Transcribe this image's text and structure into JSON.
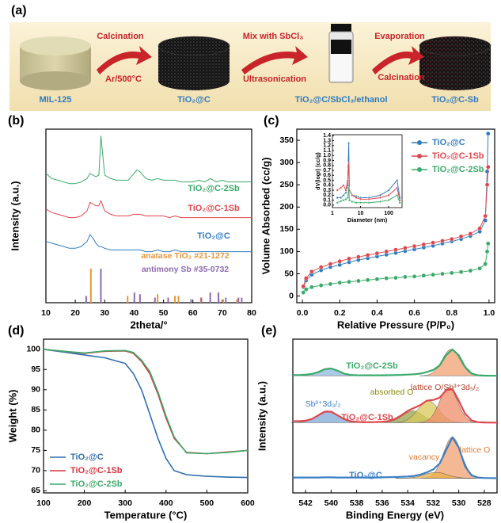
{
  "scheme": {
    "panel": "(a)",
    "steps": [
      {
        "label": "MIL-125"
      },
      {
        "label": "TiO₂@C"
      },
      {
        "label": "TiO₂@C/SbCl₃/ethanol"
      },
      {
        "label": "TiO₂@C-Sb"
      }
    ],
    "arrows": [
      {
        "top": "Calcination",
        "bottom": "Ar/500°C"
      },
      {
        "top": "Mix with SbCl₃",
        "bottom": "Ultrasonication"
      },
      {
        "top": "Evaporation",
        "bottom": "Calcination"
      }
    ]
  },
  "chart_data": [
    {
      "type": "line",
      "panel": "(b)",
      "x_label": "2theta/°",
      "y_label": "Intensity (a.u.)",
      "xlim": [
        10,
        80
      ],
      "xticks": [
        10,
        20,
        30,
        40,
        50,
        60,
        70,
        80
      ],
      "ylim": [
        0,
        102
      ],
      "x": [
        10,
        12,
        14,
        16,
        18,
        20,
        22,
        24,
        25,
        26,
        27,
        28,
        28.7,
        30,
        32,
        34,
        36,
        38,
        40,
        41,
        42,
        44,
        46,
        48,
        50,
        52,
        54,
        56,
        58,
        60,
        62,
        64,
        66,
        68,
        70,
        72,
        74,
        76,
        78,
        80
      ],
      "series": [
        {
          "name": "TiO₂@C",
          "color": "#2f7bbf",
          "values": [
            36,
            35,
            34,
            33,
            32,
            32,
            33,
            36,
            40,
            38,
            35,
            33,
            33,
            32,
            31,
            31,
            31,
            31,
            31,
            31,
            31,
            30,
            30,
            31,
            30,
            30,
            31,
            30,
            30,
            30,
            30,
            30,
            30,
            30,
            30,
            30,
            30,
            30,
            30,
            30
          ]
        },
        {
          "name": "TiO₂@C-1Sb",
          "color": "#e0474c",
          "values": [
            55,
            53,
            52,
            51,
            50,
            50,
            51,
            54,
            59,
            58,
            57,
            57,
            60,
            54,
            52,
            51,
            51,
            51,
            52,
            52,
            52,
            51,
            51,
            51,
            51,
            50,
            51,
            50,
            50,
            50,
            50,
            50,
            50,
            50,
            50,
            50,
            50,
            50,
            50,
            50
          ]
        },
        {
          "name": "TiO₂@C-2Sb",
          "color": "#3aaa6a",
          "values": [
            76,
            73,
            72,
            71,
            70,
            70,
            71,
            73,
            76,
            75,
            74,
            75,
            98,
            75,
            73,
            72,
            72,
            72,
            76,
            78,
            77,
            73,
            72,
            73,
            72,
            72,
            72,
            71,
            71,
            71,
            72,
            71,
            73,
            71,
            72,
            71,
            71,
            71,
            71,
            71
          ]
        }
      ],
      "references": [
        {
          "name": "anatase TiO₂ #21-1272",
          "color": "#e8963a",
          "x": [
            25.3,
            37.8,
            48.0,
            53.9,
            55.1,
            62.7,
            68.8,
            70.3,
            75.0
          ],
          "values": [
            20,
            4,
            5,
            4,
            4,
            3,
            2,
            2,
            2
          ]
        },
        {
          "name": "antimony Sb #35-0732",
          "color": "#8e6bb0",
          "x": [
            23.7,
            28.7,
            40.1,
            42.0,
            47.1,
            51.6,
            59.4,
            62.9,
            65.9,
            68.7,
            71.2,
            75.5,
            76.6
          ],
          "values": [
            4,
            20,
            6,
            5,
            3,
            3,
            2,
            3,
            6,
            6,
            3,
            3,
            3
          ]
        }
      ]
    },
    {
      "type": "line",
      "panel": "(c)",
      "markers": true,
      "legend": "upper right",
      "x_label": "Relative Pressure (P/P₀)",
      "y_label": "Volume Absorbed (cc/g)",
      "xlim": [
        -0.03,
        1.03
      ],
      "xticks": [
        {
          "value": 0,
          "label": "0.0"
        },
        {
          "value": 0.2,
          "label": "0.2"
        },
        {
          "value": 0.4,
          "label": "0.4"
        },
        {
          "value": 0.6,
          "label": "0.6"
        },
        {
          "value": 0.8,
          "label": "0.8"
        },
        {
          "value": 1,
          "label": "1.0"
        }
      ],
      "ylim": [
        -15,
        375
      ],
      "yticks": [
        0,
        50,
        100,
        150,
        200,
        250,
        300,
        350
      ],
      "x": [
        0.005,
        0.02,
        0.05,
        0.1,
        0.15,
        0.2,
        0.25,
        0.3,
        0.35,
        0.4,
        0.45,
        0.5,
        0.55,
        0.6,
        0.65,
        0.7,
        0.75,
        0.8,
        0.85,
        0.9,
        0.95,
        0.98,
        0.99,
        0.995
      ],
      "series": [
        {
          "name": "TiO₂@C",
          "color": "#2f7bbf",
          "values": [
            20,
            35,
            48,
            58,
            65,
            70,
            76,
            81,
            85,
            89,
            93,
            97,
            101,
            105,
            109,
            113,
            118,
            123,
            128,
            135,
            145,
            170,
            280,
            365
          ]
        },
        {
          "name": "TiO₂@C-1Sb",
          "color": "#e0474c",
          "values": [
            22,
            40,
            55,
            65,
            72,
            78,
            84,
            88,
            92,
            96,
            100,
            104,
            108,
            112,
            116,
            120,
            124,
            128,
            134,
            140,
            152,
            180,
            250,
            290
          ]
        },
        {
          "name": "TiO₂@C-2Sb",
          "color": "#3aaa6a",
          "values": [
            8,
            15,
            20,
            24,
            27,
            30,
            32,
            34,
            36,
            38,
            40,
            41,
            43,
            44,
            46,
            48,
            50,
            52,
            54,
            57,
            62,
            72,
            100,
            118
          ]
        }
      ]
    },
    {
      "type": "line",
      "inset": true,
      "markers": true,
      "log_x": true,
      "x_label": "Diameter (nm)",
      "y_label": "dV(logr) (cc/g)",
      "xlim": [
        1,
        300
      ],
      "xticks": [
        1,
        10,
        100
      ],
      "ylim": [
        -0.05,
        1.42
      ],
      "yticks": [
        {
          "value": 0,
          "label": "0.0"
        },
        {
          "value": 0.1,
          "label": "0.1"
        },
        {
          "value": 0.2,
          "label": "0.2"
        },
        {
          "value": 0.3,
          "label": "0.3"
        },
        {
          "value": 0.4,
          "label": "0.4"
        },
        {
          "value": 0.5,
          "label": "0.5"
        },
        {
          "value": 0.6,
          "label": "0.6"
        },
        {
          "value": 0.7,
          "label": "0.7"
        },
        {
          "value": 0.8,
          "label": "0.8"
        },
        {
          "value": 0.9,
          "label": "0.9"
        },
        {
          "value": 1,
          "label": "1.0"
        },
        {
          "value": 1.1,
          "label": "1.1"
        },
        {
          "value": 1.2,
          "label": "1.2"
        },
        {
          "value": 1.3,
          "label": "1.3"
        },
        {
          "value": 1.4,
          "label": "1.4"
        }
      ],
      "x": [
        1.5,
        2,
        2.5,
        3,
        3.5,
        3.8,
        4,
        5,
        7,
        10,
        20,
        50,
        100,
        200,
        250
      ],
      "series": [
        {
          "color": "#2f7bbf",
          "values": [
            0.15,
            0.15,
            0.2,
            0.25,
            0.4,
            1.25,
            0.3,
            0.2,
            0.18,
            0.15,
            0.15,
            0.2,
            0.3,
            0.5,
            0.15
          ]
        },
        {
          "color": "#e0474c",
          "values": [
            0.3,
            0.35,
            0.4,
            0.3,
            0.5,
            0.85,
            0.3,
            0.2,
            0.15,
            0.12,
            0.12,
            0.15,
            0.2,
            0.35,
            0.1
          ]
        },
        {
          "color": "#3aaa6a",
          "values": [
            0.05,
            0.08,
            0.1,
            0.12,
            0.15,
            0.35,
            0.1,
            0.07,
            0.05,
            0.05,
            0.05,
            0.07,
            0.1,
            0.2,
            0.05
          ]
        }
      ]
    },
    {
      "type": "line",
      "panel": "(d)",
      "legend": "lower left",
      "x_label": "Temperature (°C)",
      "y_label": "Weight (%)",
      "xlim": [
        100,
        600
      ],
      "xticks": [
        100,
        200,
        300,
        400,
        500,
        600
      ],
      "ylim": [
        64.5,
        102.5
      ],
      "yticks": [
        65,
        70,
        75,
        80,
        85,
        90,
        95,
        100
      ],
      "x": [
        100,
        150,
        200,
        250,
        300,
        320,
        340,
        360,
        380,
        400,
        420,
        450,
        500,
        550,
        600
      ],
      "series": [
        {
          "name": "TiO₂@C",
          "color": "#2f6fb0",
          "values": [
            100,
            99.3,
            98.6,
            97.9,
            96.5,
            94,
            90,
            84,
            78,
            73,
            70,
            69,
            68.6,
            68.4,
            68.3
          ]
        },
        {
          "name": "TiO₂@C-1Sb",
          "color": "#d8333a",
          "values": [
            100,
            99.5,
            99,
            99.5,
            99.6,
            99,
            97,
            94,
            89,
            83,
            78,
            74.5,
            74.2,
            74.6,
            75
          ]
        },
        {
          "name": "TiO₂@C-2Sb",
          "color": "#3aaa6a",
          "values": [
            100,
            99.5,
            99.1,
            99.6,
            99.7,
            99.2,
            97.3,
            94.5,
            89.5,
            83.5,
            78.3,
            74.4,
            74.2,
            74.5,
            75
          ]
        }
      ]
    },
    {
      "type": "line",
      "panel": "(e)",
      "x_label": "Binding Energy (eV)",
      "y_label": "Intensity (a.u.)",
      "xlim": [
        543,
        527
      ],
      "xticks": [
        542,
        540,
        538,
        536,
        534,
        532,
        530,
        528
      ],
      "ylim": [
        0,
        105
      ],
      "x": [
        543,
        542.5,
        542,
        541.5,
        541,
        540.5,
        540,
        539.5,
        539,
        538.5,
        538,
        537.5,
        537,
        536.5,
        536,
        535.5,
        535,
        534.5,
        534,
        533.5,
        533,
        532.5,
        532,
        531.5,
        531,
        530.5,
        530,
        529.5,
        529,
        528.5,
        528,
        527.5,
        527
      ],
      "series": [
        {
          "name": "TiO₂@C",
          "color": "#3b7fc4",
          "baseline": 10,
          "values": [
            10.5,
            10.5,
            10.5,
            10.5,
            10.5,
            10.6,
            10.6,
            10.5,
            10.5,
            10.5,
            10.5,
            10.5,
            10.5,
            10.5,
            10.6,
            10.7,
            10.8,
            11,
            11.2,
            11.6,
            12.5,
            14,
            16,
            20,
            29,
            38,
            31,
            18,
            12,
            10.5,
            10.2,
            10.1,
            10
          ],
          "components": [
            {
              "label": "lattice O",
              "center": 530.5,
              "height": 28,
              "width": 0.7,
              "color": "#f2a071",
              "label_color": "#e07b2a"
            },
            {
              "label": "vacancy",
              "center": 531.8,
              "height": 4,
              "width": 0.9,
              "color": "#e8b04a",
              "label_color": "#e07b2a"
            }
          ]
        },
        {
          "name": "TiO₂@C-1Sb",
          "color": "#e0474c",
          "baseline": 48,
          "values": [
            49,
            49,
            49.3,
            50.5,
            53,
            55.5,
            55.5,
            53,
            50.5,
            49,
            48.5,
            48.3,
            48.3,
            48.4,
            48.6,
            49,
            50.5,
            53,
            56,
            58,
            60,
            63,
            63.5,
            65,
            70,
            71,
            63,
            54,
            49.5,
            48.3,
            48.1,
            48,
            48
          ],
          "components": [
            {
              "label": "Sb³⁺3d₃/₂",
              "center": 540.3,
              "height": 8,
              "width": 0.8,
              "color": "#7fa8d8",
              "label_color": "#3b7fc4"
            },
            {
              "center": 533.6,
              "height": 8,
              "width": 0.8,
              "color": "#9aa34a"
            },
            {
              "label": "absorbed O",
              "center": 532.4,
              "height": 15,
              "width": 0.8,
              "color": "#d8c85a",
              "label_color": "#8a8a10"
            },
            {
              "label": "lattice O/Sb³⁺3d₅/₂",
              "center": 530.8,
              "height": 24,
              "width": 0.7,
              "color": "#ee8c68",
              "label_color": "#b8402a"
            }
          ]
        },
        {
          "name": "TiO₂@C-2Sb",
          "color": "#3aaa6a",
          "baseline": 80,
          "values": [
            80.5,
            80.5,
            80.7,
            81.3,
            82.5,
            84.5,
            85,
            83.5,
            81.5,
            80.6,
            80.4,
            80.3,
            80.3,
            80.3,
            80.3,
            80.4,
            80.5,
            80.6,
            80.8,
            81,
            81.5,
            82.5,
            84,
            87,
            94,
            98,
            94,
            86,
            81.5,
            80.3,
            80.1,
            80,
            80
          ],
          "components": [
            {
              "center": 540.2,
              "height": 5,
              "width": 0.8,
              "color": "#8fb8de"
            },
            {
              "center": 530.6,
              "height": 18,
              "width": 0.7,
              "color": "#f2a071"
            }
          ]
        }
      ]
    }
  ]
}
